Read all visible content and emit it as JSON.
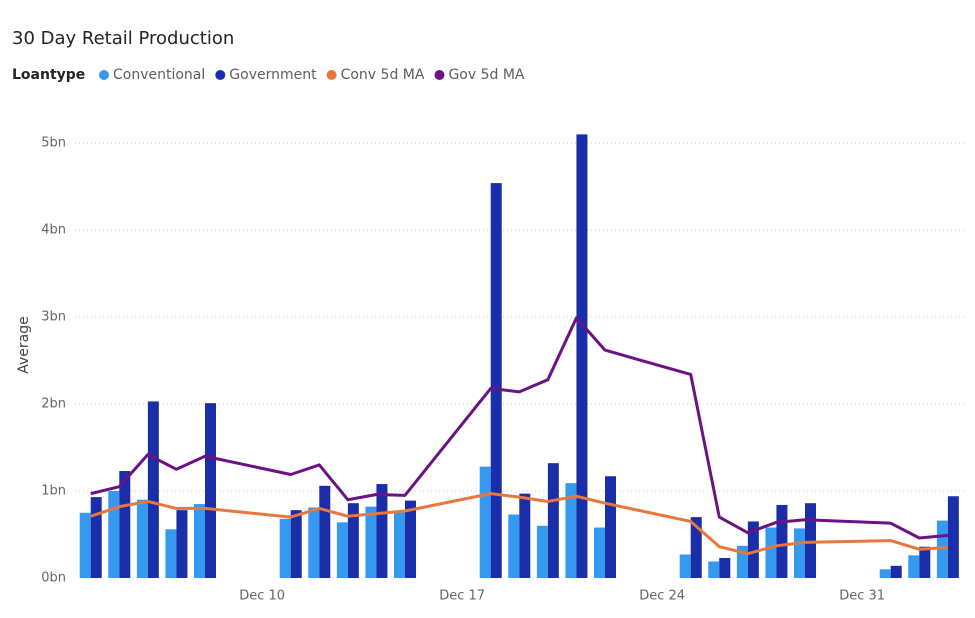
{
  "chart_data": {
    "type": "bar_line_combo",
    "title": "30 Day Retail Production",
    "legend_title": "Loantype",
    "ylabel": "Average",
    "x": [
      4,
      5,
      6,
      7,
      8,
      11,
      12,
      13,
      14,
      15,
      18,
      19,
      20,
      21,
      22,
      25,
      26,
      27,
      28,
      29,
      32,
      33,
      34
    ],
    "xlim": [
      3.45,
      34.6
    ],
    "xticks": [
      {
        "value": 10,
        "label": "Dec 10"
      },
      {
        "value": 17,
        "label": "Dec 17"
      },
      {
        "value": 24,
        "label": "Dec 24"
      },
      {
        "value": 31,
        "label": "Dec 31"
      }
    ],
    "ylim": [
      0,
      5.3
    ],
    "yticks": [
      {
        "value": 0,
        "label": "0bn"
      },
      {
        "value": 1,
        "label": "1bn"
      },
      {
        "value": 2,
        "label": "2bn"
      },
      {
        "value": 3,
        "label": "3bn"
      },
      {
        "value": 4,
        "label": "4bn"
      },
      {
        "value": 5,
        "label": "5bn"
      }
    ],
    "grid": true,
    "series": [
      {
        "name": "Conventional",
        "kind": "bar",
        "color": "#3599f0",
        "values": [
          0.75,
          1.0,
          0.9,
          0.56,
          0.85,
          0.68,
          0.81,
          0.64,
          0.82,
          0.77,
          1.28,
          0.73,
          0.6,
          1.09,
          0.58,
          0.27,
          0.19,
          0.37,
          0.58,
          0.57,
          0.1,
          0.26,
          0.66
        ]
      },
      {
        "name": "Government",
        "kind": "bar",
        "color": "#1a2eaa",
        "values": [
          0.93,
          1.23,
          2.03,
          0.78,
          2.01,
          0.78,
          1.06,
          0.86,
          1.08,
          0.89,
          4.54,
          0.97,
          1.32,
          5.1,
          1.17,
          0.7,
          0.23,
          0.65,
          0.84,
          0.86,
          0.14,
          0.36,
          0.94
        ]
      },
      {
        "name": "Conv 5d MA",
        "kind": "line",
        "color": "#e8773d",
        "values": [
          0.71,
          0.82,
          0.88,
          0.8,
          0.8,
          0.7,
          0.8,
          0.71,
          0.74,
          0.77,
          0.97,
          0.93,
          0.88,
          0.94,
          0.86,
          0.65,
          0.36,
          0.28,
          0.37,
          0.41,
          0.43,
          0.33,
          0.35
        ]
      },
      {
        "name": "Gov 5d MA",
        "kind": "line",
        "color": "#6b1285",
        "values": [
          0.97,
          1.05,
          1.42,
          1.25,
          1.4,
          1.19,
          1.3,
          0.9,
          0.96,
          0.95,
          2.18,
          2.14,
          2.28,
          2.99,
          2.62,
          2.34,
          0.7,
          0.52,
          0.64,
          0.67,
          0.63,
          0.46,
          0.49
        ]
      }
    ]
  }
}
